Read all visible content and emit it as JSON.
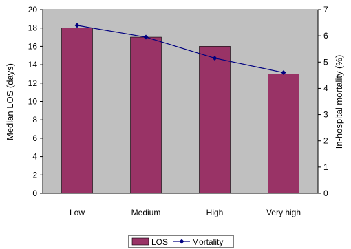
{
  "chart_data": {
    "type": "bar",
    "categories": [
      "Low",
      "Medium",
      "High",
      "Very high"
    ],
    "series": [
      {
        "name": "LOS",
        "type": "bar",
        "axis": "left",
        "values": [
          18,
          17,
          16,
          13
        ],
        "color": "#993366"
      },
      {
        "name": "Mortality",
        "type": "line",
        "axis": "right",
        "values": [
          6.4,
          5.95,
          5.15,
          4.6
        ],
        "color": "#000080"
      }
    ],
    "ylabel": "Median LOS (days)",
    "y2label": "In-hospital mortality (%)",
    "ylim": [
      0,
      20
    ],
    "y2lim": [
      0,
      7
    ],
    "yticks": [
      "0",
      "2",
      "4",
      "6",
      "8",
      "10",
      "12",
      "14",
      "16",
      "18",
      "20"
    ],
    "y2ticks": [
      "0",
      "1",
      "2",
      "3",
      "4",
      "5",
      "6",
      "7"
    ],
    "grid": false,
    "plot_background": "#c0c0c0",
    "legend_position": "bottom-center"
  }
}
